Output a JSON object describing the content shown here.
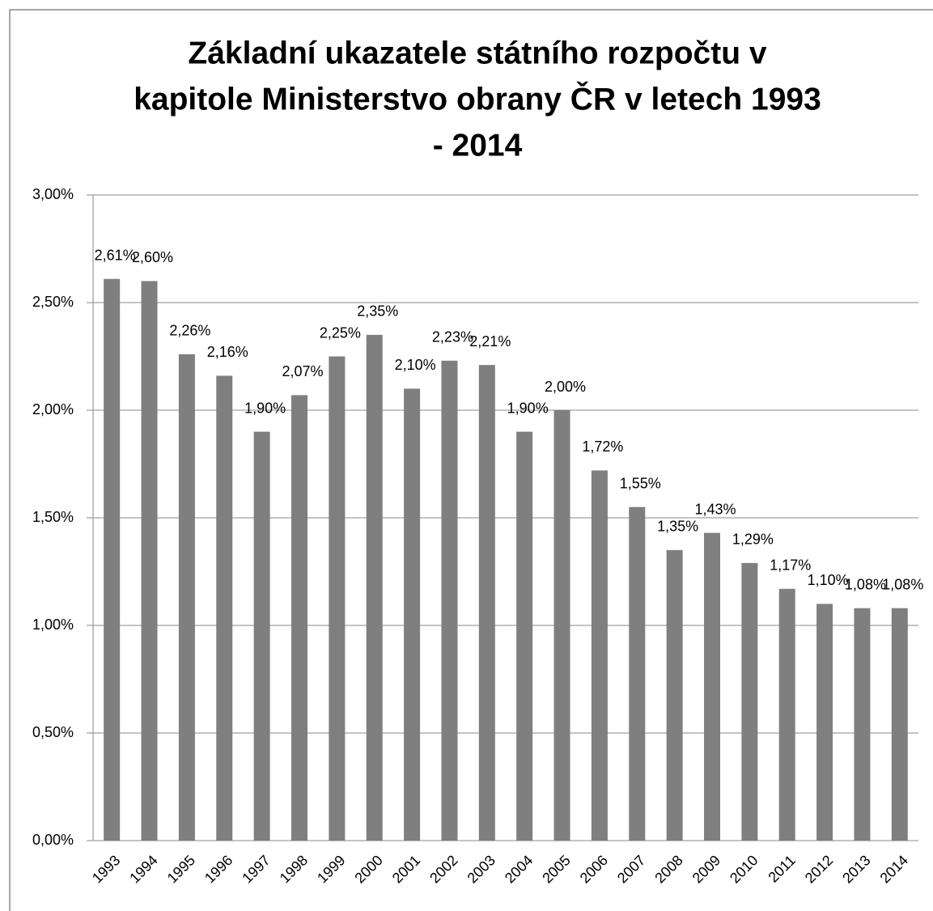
{
  "chart_data": {
    "type": "bar",
    "title": [
      "Základní ukazatele státního rozpočtu v",
      "kapitole Ministerstvo obrany ČR v letech 1993",
      "- 2014"
    ],
    "categories": [
      "1993",
      "1994",
      "1995",
      "1996",
      "1997",
      "1998",
      "1999",
      "2000",
      "2001",
      "2002",
      "2003",
      "2004",
      "2005",
      "2006",
      "2007",
      "2008",
      "2009",
      "2010",
      "2011",
      "2012",
      "2013",
      "2014"
    ],
    "values": [
      2.61,
      2.6,
      2.26,
      2.16,
      1.9,
      2.07,
      2.25,
      2.35,
      2.1,
      2.23,
      2.21,
      1.9,
      2.0,
      1.72,
      1.55,
      1.35,
      1.43,
      1.29,
      1.17,
      1.1,
      1.08,
      1.08
    ],
    "value_labels": [
      "2,61%",
      "2,60%",
      "2,26%",
      "2,16%",
      "1,90%",
      "2,07%",
      "2,25%",
      "2,35%",
      "2,10%",
      "2,23%",
      "2,21%",
      "1,90%",
      "2,00%",
      "1,72%",
      "1,55%",
      "1,35%",
      "1,43%",
      "1,29%",
      "1,17%",
      "1,10%",
      "1,08%",
      "1,08%"
    ],
    "color": "#7f7f7f",
    "ylim": [
      0,
      3
    ],
    "yticks": [
      {
        "value": 0,
        "label": "0,00%"
      },
      {
        "value": 0.5,
        "label": "0,50%"
      },
      {
        "value": 1,
        "label": "1,00%"
      },
      {
        "value": 1.5,
        "label": "1,50%"
      },
      {
        "value": 2,
        "label": "2,00%"
      },
      {
        "value": 2.5,
        "label": "2,50%"
      },
      {
        "value": 3,
        "label": "3,00%"
      }
    ],
    "grid": true
  }
}
